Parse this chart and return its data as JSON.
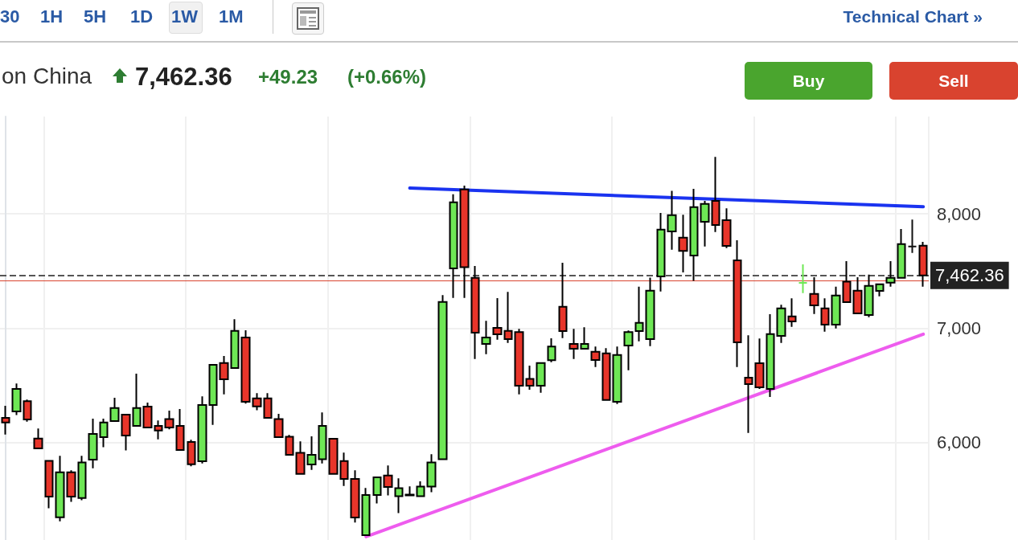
{
  "chart_data": {
    "type": "candlestick",
    "title": "on China",
    "annotations": [
      "30",
      "1H",
      "5H",
      "1D",
      "1W",
      "1M",
      "Technical Chart »",
      "7,462.36",
      "+49.23",
      "(+0.66%)",
      "Buy",
      "Sell"
    ],
    "categories": [
      null,
      null,
      null,
      null,
      null,
      null,
      null,
      null,
      null,
      null,
      null,
      null,
      null,
      null,
      null,
      null,
      null,
      null,
      null,
      null,
      null,
      null,
      null,
      null,
      null,
      null,
      null,
      null,
      null,
      null,
      null,
      null,
      null,
      null,
      null,
      null,
      null,
      null,
      null,
      null,
      null,
      null,
      null,
      null,
      null,
      null,
      null,
      null,
      null,
      null,
      null,
      null,
      null,
      null,
      null,
      null,
      null,
      null,
      null,
      null,
      null,
      null,
      null,
      null,
      null,
      null,
      null,
      null,
      null,
      null,
      null,
      null,
      null,
      null,
      null,
      null,
      null,
      null,
      null,
      null,
      null,
      null,
      null,
      null,
      null
    ],
    "ohlc": [
      [
        6217,
        6323,
        6072,
        6177
      ],
      [
        6274,
        6517,
        6241,
        6470
      ],
      [
        6363,
        6377,
        6184,
        6203
      ],
      [
        6037,
        6124,
        5951,
        5951
      ],
      [
        5841,
        5841,
        5427,
        5530
      ],
      [
        5349,
        5885,
        5314,
        5742
      ],
      [
        5742,
        5759,
        5483,
        5530
      ],
      [
        5516,
        5885,
        5497,
        5827
      ],
      [
        5852,
        6210,
        5777,
        6077
      ],
      [
        6049,
        6210,
        5961,
        6177
      ],
      [
        6189,
        6393,
        6189,
        6304
      ],
      [
        6245,
        6245,
        5932,
        6063
      ],
      [
        6147,
        6603,
        6147,
        6304
      ],
      [
        6316,
        6351,
        6133,
        6133
      ],
      [
        6147,
        6194,
        6030,
        6107
      ],
      [
        6206,
        6281,
        6117,
        6133
      ],
      [
        6147,
        6295,
        5937,
        5937
      ],
      [
        6007,
        6026,
        5794,
        5811
      ],
      [
        5838,
        6405,
        5819,
        6330
      ],
      [
        6330,
        6681,
        6156,
        6681
      ],
      [
        6697,
        6758,
        6423,
        6554
      ],
      [
        6652,
        7079,
        6652,
        6977
      ],
      [
        6919,
        6982,
        6342,
        6358
      ],
      [
        6388,
        6433,
        6283,
        6318
      ],
      [
        6388,
        6433,
        6217,
        6217
      ],
      [
        6206,
        6253,
        6049,
        6049
      ],
      [
        6052,
        6068,
        5895,
        5895
      ],
      [
        5911,
        6012,
        5728,
        5728
      ],
      [
        5810,
        6056,
        5763,
        5895
      ],
      [
        5855,
        6265,
        5819,
        6147
      ],
      [
        6035,
        6035,
        5728,
        5728
      ],
      [
        5839,
        5914,
        5623,
        5684
      ],
      [
        5684,
        5759,
        5302,
        5347
      ],
      [
        5193,
        5605,
        5193,
        5544
      ],
      [
        5544,
        5698,
        5469,
        5698
      ],
      [
        5714,
        5801,
        5539,
        5614
      ],
      [
        5532,
        5689,
        5385,
        5603
      ],
      [
        5540,
        5619,
        5540,
        5547
      ],
      [
        5532,
        5663,
        5532,
        5617
      ],
      [
        5617,
        5900,
        5567,
        5827
      ],
      [
        5855,
        7289,
        5855,
        7230
      ],
      [
        7523,
        8171,
        7265,
        8100
      ],
      [
        8213,
        8246,
        7265,
        7534
      ],
      [
        7441,
        7544,
        6732,
        6961
      ],
      [
        6863,
        7065,
        6774,
        6919
      ],
      [
        7003,
        7263,
        6900,
        6947
      ],
      [
        6977,
        7317,
        6872,
        6905
      ],
      [
        6966,
        6994,
        6423,
        6498
      ],
      [
        6557,
        6674,
        6463,
        6498
      ],
      [
        6498,
        6697,
        6437,
        6697
      ],
      [
        6721,
        6912,
        6704,
        6840
      ],
      [
        7188,
        7572,
        6914,
        6975
      ],
      [
        6863,
        6994,
        6732,
        6821
      ],
      [
        6821,
        7009,
        6821,
        6863
      ],
      [
        6795,
        6840,
        6662,
        6723
      ],
      [
        6781,
        6826,
        6374,
        6374
      ],
      [
        6358,
        6840,
        6339,
        6767
      ],
      [
        6849,
        6980,
        6634,
        6966
      ],
      [
        6975,
        7363,
        6886,
        7048
      ],
      [
        6905,
        7443,
        6844,
        7328
      ],
      [
        7453,
        8007,
        7321,
        7862
      ],
      [
        7846,
        8201,
        7686,
        7988
      ],
      [
        7792,
        7991,
        7488,
        7675
      ],
      [
        7635,
        8218,
        7415,
        8058
      ],
      [
        7930,
        8112,
        7714,
        8086
      ],
      [
        8112,
        8498,
        7841,
        7902
      ],
      [
        7944,
        8047,
        7700,
        7719
      ],
      [
        7593,
        7768,
        6662,
        6877
      ],
      [
        6568,
        6938,
        6086,
        6512
      ],
      [
        6695,
        6910,
        6470,
        6484
      ],
      [
        6470,
        7123,
        6400,
        6949
      ],
      [
        6933,
        7205,
        6872,
        7174
      ],
      [
        7104,
        7261,
        7013,
        7060
      ],
      [
        7396,
        7558,
        7307,
        7396
      ],
      [
        7300,
        7446,
        7125,
        7200
      ],
      [
        7174,
        7261,
        6970,
        7032
      ],
      [
        7032,
        7363,
        6999,
        7286
      ],
      [
        7408,
        7586,
        7228,
        7228
      ],
      [
        7328,
        7446,
        7130,
        7130
      ],
      [
        7116,
        7469,
        7097,
        7370
      ],
      [
        7326,
        7384,
        7279,
        7384
      ],
      [
        7399,
        7586,
        7363,
        7441
      ],
      [
        7441,
        7867,
        7441,
        7735
      ],
      [
        7714,
        7949,
        7658,
        7714
      ],
      [
        7721,
        7754,
        7363,
        7462.36
      ]
    ],
    "colors": [
      "#e8352a",
      "#6ee755",
      "#e8352a",
      "#e8352a",
      "#e8352a",
      "#6ee755",
      "#e8352a",
      "#6ee755",
      "#6ee755",
      "#6ee755",
      "#6ee755",
      "#e8352a",
      "#6ee755",
      "#e8352a",
      "#e8352a",
      "#e8352a",
      "#e8352a",
      "#e8352a",
      "#6ee755",
      "#6ee755",
      "#e8352a",
      "#6ee755",
      "#e8352a",
      "#e8352a",
      "#e8352a",
      "#e8352a",
      "#e8352a",
      "#e8352a",
      "#6ee755",
      "#6ee755",
      "#e8352a",
      "#e8352a",
      "#e8352a",
      "#6ee755",
      "#6ee755",
      "#e8352a",
      "#6ee755",
      "#6ee755",
      "#6ee755",
      "#6ee755",
      "#6ee755",
      "#6ee755",
      "#e8352a",
      "#e8352a",
      "#6ee755",
      "#e8352a",
      "#e8352a",
      "#e8352a",
      "#e8352a",
      "#6ee755",
      "#6ee755",
      "#e8352a",
      "#e8352a",
      "#6ee755",
      "#e8352a",
      "#e8352a",
      "#6ee755",
      "#6ee755",
      "#6ee755",
      "#6ee755",
      "#6ee755",
      "#6ee755",
      "#e8352a",
      "#6ee755",
      "#6ee755",
      "#e8352a",
      "#e8352a",
      "#e8352a",
      "#e8352a",
      "#e8352a",
      "#6ee755",
      "#6ee755",
      "#e8352a",
      "#6ee755",
      "#e8352a",
      "#e8352a",
      "#6ee755",
      "#e8352a",
      "#e8352a",
      "#6ee755",
      "#6ee755",
      "#6ee755",
      "#6ee755",
      "#111111",
      "#e8352a"
    ],
    "series": [
      {
        "type": "line",
        "color": "#1a33f0",
        "values": [
          null,
          null,
          null,
          null,
          null,
          null,
          null,
          null,
          null,
          null,
          null,
          null,
          null,
          null,
          null,
          null,
          null,
          null,
          null,
          null,
          null,
          null,
          null,
          null,
          null,
          null,
          null,
          null,
          null,
          null,
          null,
          null,
          null,
          null,
          null,
          null,
          null,
          8225,
          null,
          null,
          null,
          null,
          null,
          null,
          null,
          null,
          null,
          null,
          null,
          null,
          null,
          null,
          null,
          null,
          null,
          null,
          null,
          null,
          null,
          null,
          null,
          null,
          null,
          null,
          null,
          null,
          null,
          null,
          null,
          null,
          null,
          null,
          null,
          null,
          null,
          null,
          null,
          null,
          null,
          null,
          null,
          null,
          null,
          null,
          8062
        ]
      },
      {
        "type": "line",
        "color": "#ee5cee",
        "values": [
          null,
          null,
          null,
          null,
          null,
          null,
          null,
          null,
          null,
          null,
          null,
          null,
          null,
          null,
          null,
          null,
          null,
          null,
          null,
          null,
          null,
          null,
          null,
          null,
          null,
          null,
          null,
          null,
          null,
          null,
          null,
          null,
          null,
          5179,
          null,
          null,
          null,
          null,
          null,
          null,
          null,
          null,
          null,
          null,
          null,
          null,
          null,
          null,
          null,
          null,
          null,
          null,
          null,
          null,
          null,
          null,
          null,
          null,
          null,
          null,
          null,
          null,
          null,
          null,
          null,
          null,
          null,
          null,
          null,
          null,
          null,
          null,
          null,
          null,
          null,
          null,
          null,
          null,
          null,
          null,
          null,
          null,
          null,
          null,
          6948
        ]
      }
    ],
    "ref_lines": [
      {
        "axis": "y",
        "value": 7462.36,
        "label": "7,462.36",
        "color": "#555555",
        "line_style": "dashed"
      },
      {
        "axis": "y",
        "value": 7413.13,
        "color": "#d9452f",
        "line_style": "solid"
      }
    ],
    "ylim": [
      5150,
      8850
    ],
    "yticks": [
      {
        "value": 6000,
        "label": "6,000"
      },
      {
        "value": 7000,
        "label": "7,000"
      },
      {
        "value": 8000,
        "label": "8,000"
      }
    ],
    "grid": true
  }
}
